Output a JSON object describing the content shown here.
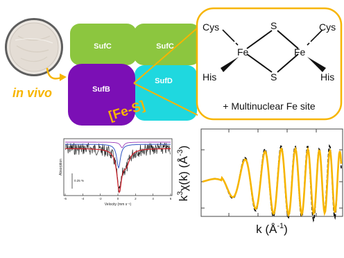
{
  "graphic": {
    "in_vivo_label": "in vivo",
    "complex_label": "[Fe-S]",
    "suf": {
      "top_left": "SufC",
      "top_right": "SufC",
      "bottom_left": "SufB",
      "bottom_right": "SufD"
    },
    "cluster": {
      "ligand_top_left": "Cys",
      "ligand_top_right": "Cys",
      "ligand_bottom_left": "His",
      "ligand_bottom_right": "His",
      "metal_left": "Fe",
      "metal_right": "Fe",
      "bridge_top": "S",
      "bridge_bottom": "S",
      "caption": "+ Multinuclear Fe site"
    },
    "colors": {
      "sufC": "#8cc63f",
      "sufB": "#7b0fb5",
      "sufD": "#1fd8df",
      "highlight": "#f7b500"
    }
  },
  "mossbauer": {
    "ylabel": "Absorption",
    "xlabel": "Velocity (mm s⁻¹)",
    "scale_label": "0.25 %",
    "x_ticks": [
      "-6",
      "-4",
      "-2",
      "0",
      "2",
      "4",
      "6"
    ]
  },
  "exafs": {
    "ylabel_k": "k",
    "ylabel_exp": "3",
    "ylabel_chi": "χ(k) (Å",
    "ylabel_exp2": "-3",
    "ylabel_close": ")",
    "xlabel_main": "k (Å",
    "xlabel_exp": "-1",
    "xlabel_close": ")"
  }
}
